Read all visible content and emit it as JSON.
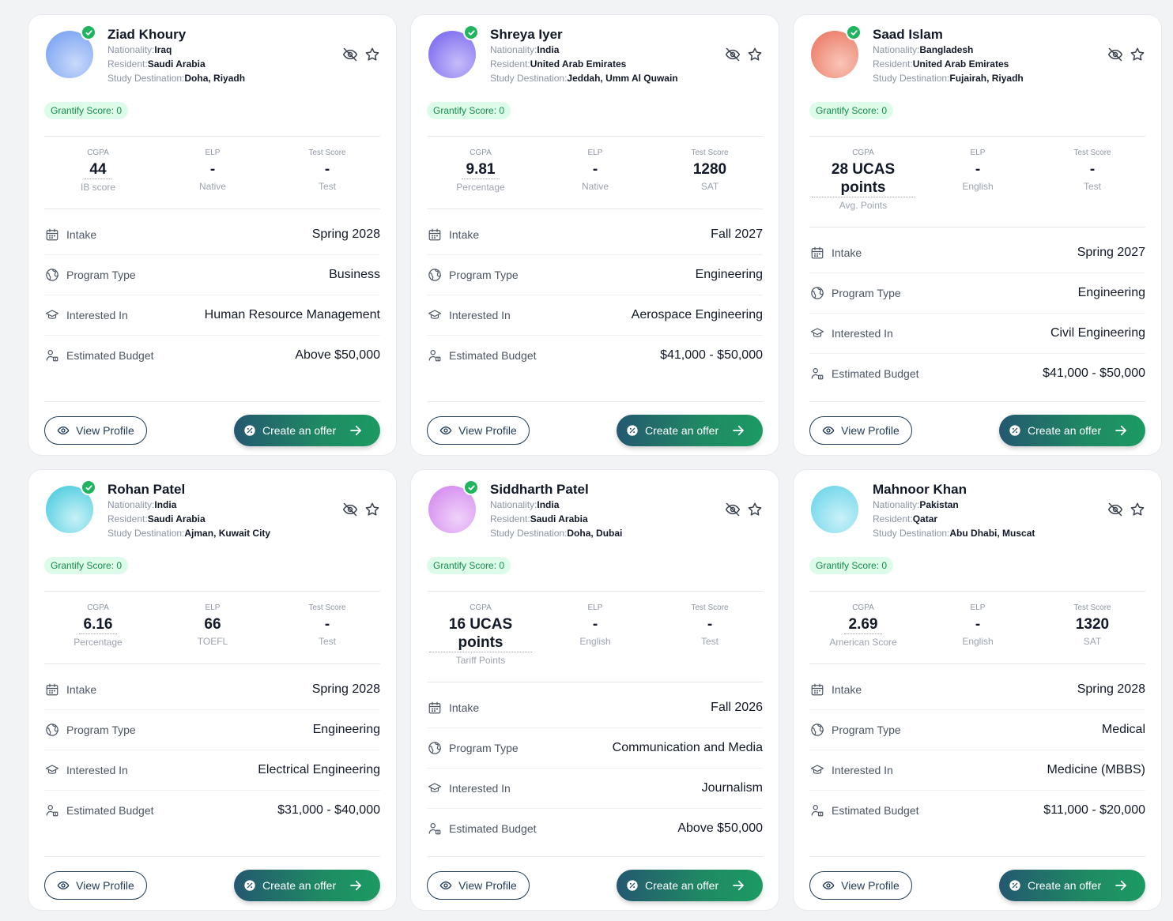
{
  "labels": {
    "nationality": "Nationality:",
    "resident": "Resident:",
    "destination": "Study Destination:",
    "cgpa": "CGPA",
    "elp": "ELP",
    "test": "Test Score",
    "intake": "Intake",
    "program": "Program Type",
    "interested": "Interested In",
    "budget": "Estimated Budget",
    "view_profile": "View Profile",
    "create_offer": "Create an offer"
  },
  "cards": [
    {
      "name": "Ziad Khoury",
      "verified": true,
      "avatar_colors": [
        "#7aa3f2",
        "#c9d9fb"
      ],
      "nationality": "Iraq",
      "resident": "Saudi Arabia",
      "destination": "Doha, Riyadh",
      "score": "Grantify Score: 0",
      "cgpa": "44",
      "cgpa_sub": "IB score",
      "elp": "-",
      "elp_sub": "Native",
      "test": "-",
      "test_sub": "Test",
      "intake": "Spring 2028",
      "program": "Business",
      "interested": "Human Resource Management",
      "budget": "Above $50,000"
    },
    {
      "name": "Shreya Iyer",
      "verified": true,
      "avatar_colors": [
        "#7c6bf0",
        "#c6bcf9"
      ],
      "nationality": "India",
      "resident": "United Arab Emirates",
      "destination": "Jeddah, Umm Al Quwain",
      "score": "Grantify Score: 0",
      "cgpa": "9.81",
      "cgpa_sub": "Percentage",
      "elp": "-",
      "elp_sub": "Native",
      "test": "1280",
      "test_sub": "SAT",
      "intake": "Fall 2027",
      "program": "Engineering",
      "interested": "Aerospace Engineering",
      "budget": "$41,000 - $50,000"
    },
    {
      "name": "Saad Islam",
      "verified": true,
      "avatar_colors": [
        "#ec7b66",
        "#f8c5b8"
      ],
      "nationality": "Bangladesh",
      "resident": "United Arab Emirates",
      "destination": "Fujairah, Riyadh",
      "score": "Grantify Score: 0",
      "cgpa": "28 UCAS points",
      "cgpa_sub": "Avg. Points",
      "elp": "-",
      "elp_sub": "English",
      "test": "-",
      "test_sub": "Test",
      "intake": "Spring 2027",
      "program": "Engineering",
      "interested": "Civil Engineering",
      "budget": "$41,000 - $50,000"
    },
    {
      "name": "Rohan Patel",
      "verified": true,
      "avatar_colors": [
        "#4fcde0",
        "#c7f1f7"
      ],
      "nationality": "India",
      "resident": "Saudi Arabia",
      "destination": "Ajman, Kuwait City",
      "score": "Grantify Score: 0",
      "cgpa": "6.16",
      "cgpa_sub": "Percentage",
      "elp": "66",
      "elp_sub": "TOEFL",
      "test": "-",
      "test_sub": "Test",
      "intake": "Spring 2028",
      "program": "Engineering",
      "interested": "Electrical Engineering",
      "budget": "$31,000 - $40,000"
    },
    {
      "name": "Siddharth Patel",
      "verified": true,
      "avatar_colors": [
        "#d48bef",
        "#f0d2fa"
      ],
      "nationality": "India",
      "resident": "Saudi Arabia",
      "destination": "Doha, Dubai",
      "score": "Grantify Score: 0",
      "cgpa": "16 UCAS points",
      "cgpa_sub": "Tariff Points",
      "elp": "-",
      "elp_sub": "English",
      "test": "-",
      "test_sub": "Test",
      "intake": "Fall 2026",
      "program": "Communication and Media",
      "interested": "Journalism",
      "budget": "Above $50,000"
    },
    {
      "name": "Mahnoor Khan",
      "verified": false,
      "avatar_colors": [
        "#6ed6ea",
        "#c9f1f8"
      ],
      "nationality": "Pakistan",
      "resident": "Qatar",
      "destination": "Abu Dhabi, Muscat",
      "score": "Grantify Score: 0",
      "cgpa": "2.69",
      "cgpa_sub": "American Score",
      "elp": "-",
      "elp_sub": "English",
      "test": "1320",
      "test_sub": "SAT",
      "intake": "Spring 2028",
      "program": "Medical",
      "interested": "Medicine (MBBS)",
      "budget": "$11,000 - $20,000"
    }
  ]
}
